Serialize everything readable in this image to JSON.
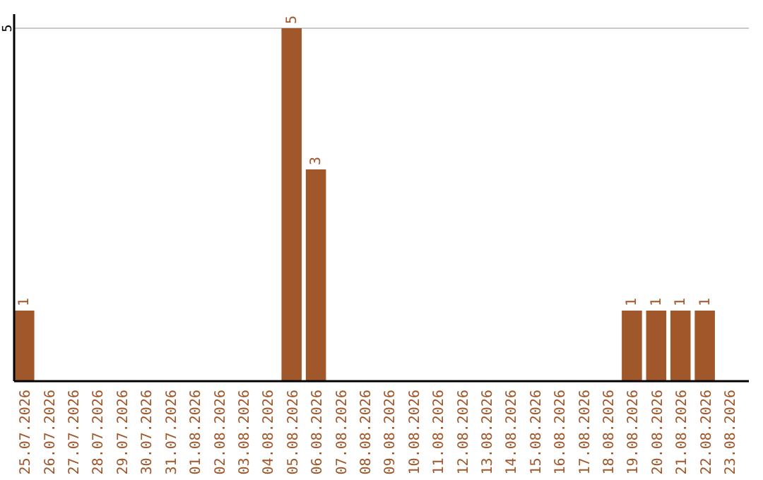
{
  "chart_data": {
    "type": "bar",
    "categories": [
      "25.07.2026",
      "26.07.2026",
      "27.07.2026",
      "28.07.2026",
      "29.07.2026",
      "30.07.2026",
      "31.07.2026",
      "01.08.2026",
      "02.08.2026",
      "03.08.2026",
      "04.08.2026",
      "05.08.2026",
      "06.08.2026",
      "07.08.2026",
      "08.08.2026",
      "09.08.2026",
      "10.08.2026",
      "11.08.2026",
      "12.08.2026",
      "13.08.2026",
      "14.08.2026",
      "15.08.2026",
      "16.08.2026",
      "17.08.2026",
      "18.08.2026",
      "19.08.2026",
      "20.08.2026",
      "21.08.2026",
      "22.08.2026",
      "23.08.2026"
    ],
    "values": [
      1,
      0,
      0,
      0,
      0,
      0,
      0,
      0,
      0,
      0,
      0,
      5,
      3,
      0,
      0,
      0,
      0,
      0,
      0,
      0,
      0,
      0,
      0,
      0,
      0,
      1,
      1,
      1,
      1,
      0
    ],
    "value_labels": [
      "1",
      null,
      null,
      null,
      null,
      null,
      null,
      null,
      null,
      null,
      null,
      "5",
      "3",
      null,
      null,
      null,
      null,
      null,
      null,
      null,
      null,
      null,
      null,
      null,
      null,
      "1",
      "1",
      "1",
      "1",
      null
    ],
    "color": "#a0572a",
    "ylim": [
      0,
      5.2
    ],
    "yticks": [
      5
    ],
    "grid": "y"
  }
}
